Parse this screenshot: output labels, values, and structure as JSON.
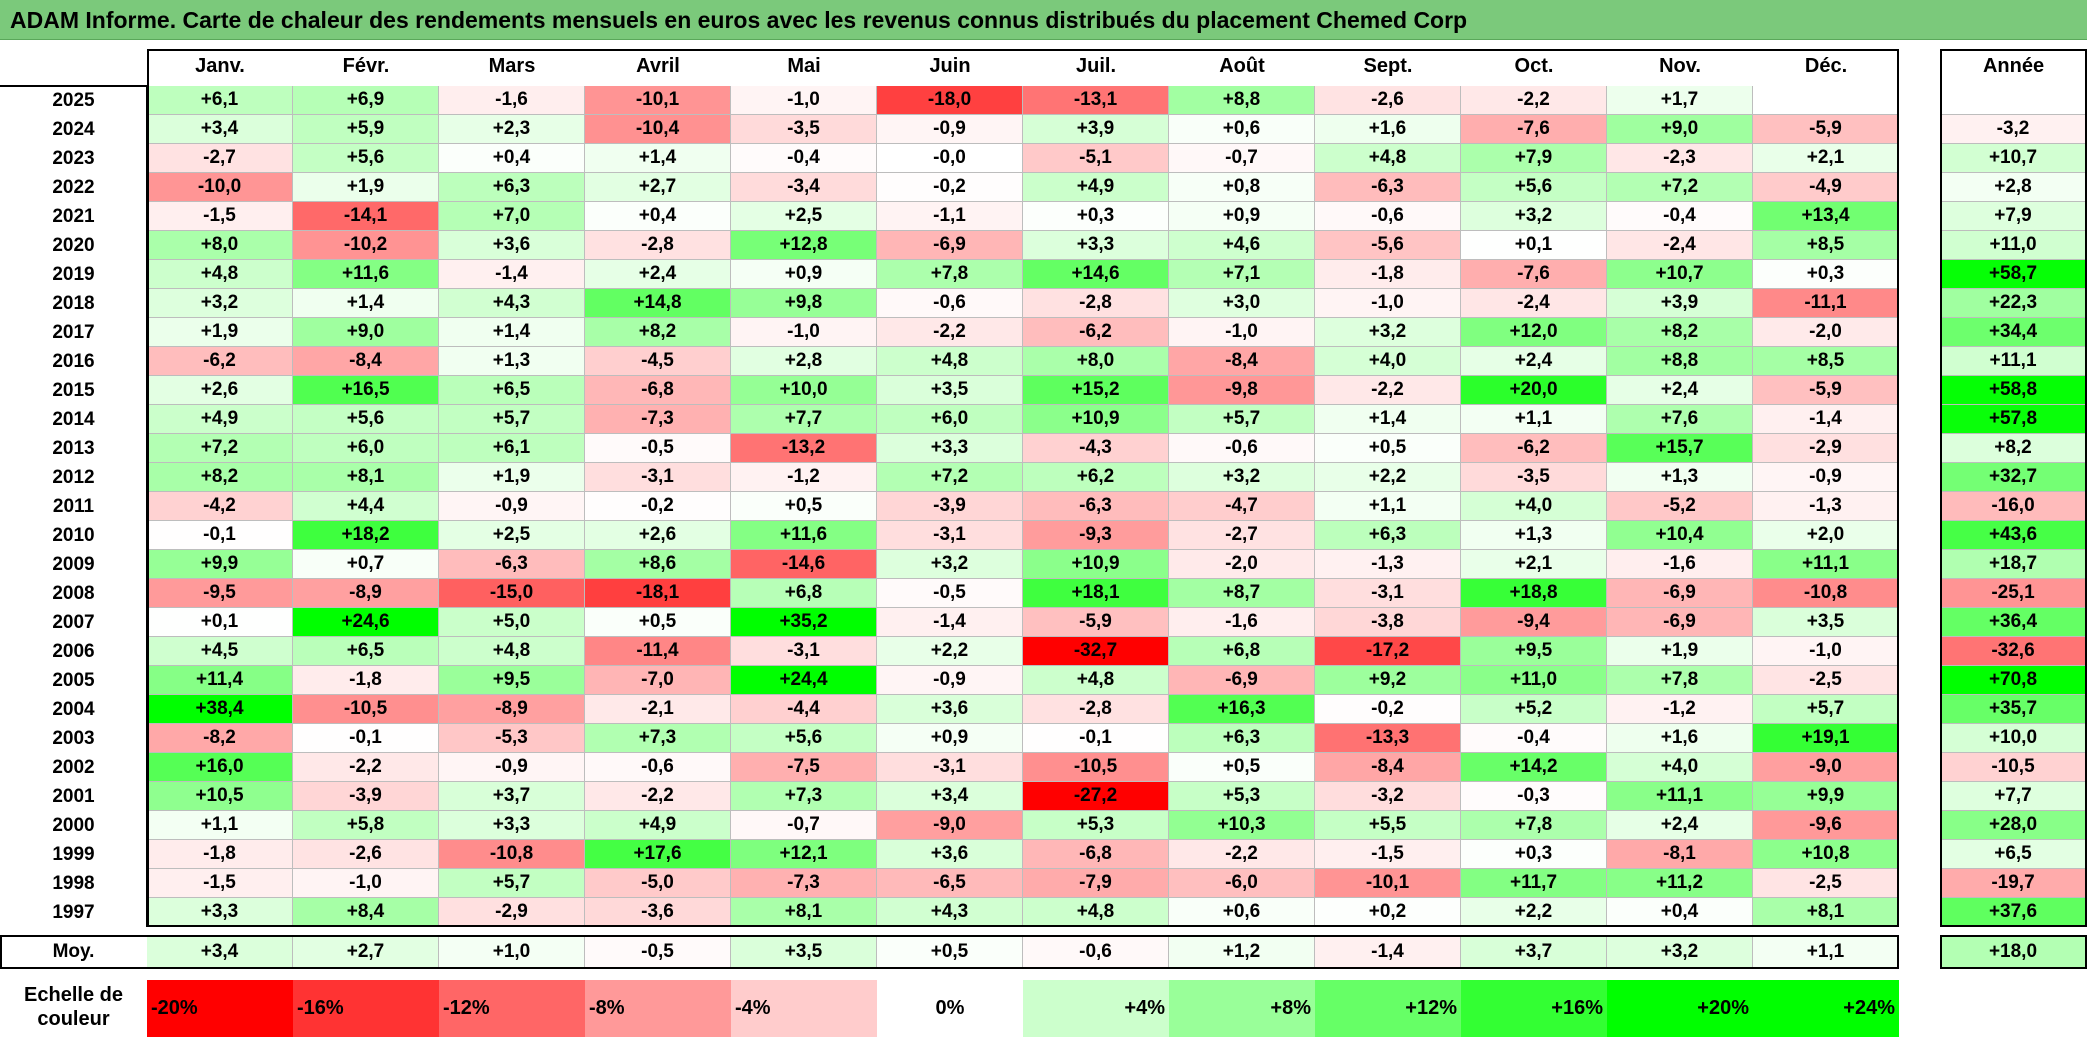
{
  "title": "ADAM Informe. Carte de chaleur des rendements mensuels en euros avec les revenus connus distribués du placement Chemed Corp",
  "colors": {
    "title_bg": "#7bc97b",
    "negative": "#ff0000",
    "positive": "#00ff00",
    "neutral": "#ffffff"
  },
  "chart_data": {
    "type": "heatmap",
    "title": "ADAM Informe. Carte de chaleur des rendements mensuels en euros avec les revenus connus distribués du placement Chemed Corp",
    "columns": [
      "Janv.",
      "Févr.",
      "Mars",
      "Avril",
      "Mai",
      "Juin",
      "Juil.",
      "Août",
      "Sept.",
      "Oct.",
      "Nov.",
      "Déc."
    ],
    "year_column_label": "Année",
    "rows": [
      {
        "year": "2025",
        "values": [
          "+6,1",
          "+6,9",
          "-1,6",
          "-10,1",
          "-1,0",
          "-18,0",
          "-13,1",
          "+8,8",
          "-2,6",
          "-2,2",
          "+1,7",
          ""
        ],
        "annual": ""
      },
      {
        "year": "2024",
        "values": [
          "+3,4",
          "+5,9",
          "+2,3",
          "-10,4",
          "-3,5",
          "-0,9",
          "+3,9",
          "+0,6",
          "+1,6",
          "-7,6",
          "+9,0",
          "-5,9"
        ],
        "annual": "-3,2"
      },
      {
        "year": "2023",
        "values": [
          "-2,7",
          "+5,6",
          "+0,4",
          "+1,4",
          "-0,4",
          "-0,0",
          "-5,1",
          "-0,7",
          "+4,8",
          "+7,9",
          "-2,3",
          "+2,1"
        ],
        "annual": "+10,7"
      },
      {
        "year": "2022",
        "values": [
          "-10,0",
          "+1,9",
          "+6,3",
          "+2,7",
          "-3,4",
          "-0,2",
          "+4,9",
          "+0,8",
          "-6,3",
          "+5,6",
          "+7,2",
          "-4,9"
        ],
        "annual": "+2,8"
      },
      {
        "year": "2021",
        "values": [
          "-1,5",
          "-14,1",
          "+7,0",
          "+0,4",
          "+2,5",
          "-1,1",
          "+0,3",
          "+0,9",
          "-0,6",
          "+3,2",
          "-0,4",
          "+13,4"
        ],
        "annual": "+7,9"
      },
      {
        "year": "2020",
        "values": [
          "+8,0",
          "-10,2",
          "+3,6",
          "-2,8",
          "+12,8",
          "-6,9",
          "+3,3",
          "+4,6",
          "-5,6",
          "+0,1",
          "-2,4",
          "+8,5"
        ],
        "annual": "+11,0"
      },
      {
        "year": "2019",
        "values": [
          "+4,8",
          "+11,6",
          "-1,4",
          "+2,4",
          "+0,9",
          "+7,8",
          "+14,6",
          "+7,1",
          "-1,8",
          "-7,6",
          "+10,7",
          "+0,3"
        ],
        "annual": "+58,7"
      },
      {
        "year": "2018",
        "values": [
          "+3,2",
          "+1,4",
          "+4,3",
          "+14,8",
          "+9,8",
          "-0,6",
          "-2,8",
          "+3,0",
          "-1,0",
          "-2,4",
          "+3,9",
          "-11,1"
        ],
        "annual": "+22,3"
      },
      {
        "year": "2017",
        "values": [
          "+1,9",
          "+9,0",
          "+1,4",
          "+8,2",
          "-1,0",
          "-2,2",
          "-6,2",
          "-1,0",
          "+3,2",
          "+12,0",
          "+8,2",
          "-2,0"
        ],
        "annual": "+34,4"
      },
      {
        "year": "2016",
        "values": [
          "-6,2",
          "-8,4",
          "+1,3",
          "-4,5",
          "+2,8",
          "+4,8",
          "+8,0",
          "-8,4",
          "+4,0",
          "+2,4",
          "+8,8",
          "+8,5"
        ],
        "annual": "+11,1"
      },
      {
        "year": "2015",
        "values": [
          "+2,6",
          "+16,5",
          "+6,5",
          "-6,8",
          "+10,0",
          "+3,5",
          "+15,2",
          "-9,8",
          "-2,2",
          "+20,0",
          "+2,4",
          "-5,9"
        ],
        "annual": "+58,8"
      },
      {
        "year": "2014",
        "values": [
          "+4,9",
          "+5,6",
          "+5,7",
          "-7,3",
          "+7,7",
          "+6,0",
          "+10,9",
          "+5,7",
          "+1,4",
          "+1,1",
          "+7,6",
          "-1,4"
        ],
        "annual": "+57,8"
      },
      {
        "year": "2013",
        "values": [
          "+7,2",
          "+6,0",
          "+6,1",
          "-0,5",
          "-13,2",
          "+3,3",
          "-4,3",
          "-0,6",
          "+0,5",
          "-6,2",
          "+15,7",
          "-2,9"
        ],
        "annual": "+8,2"
      },
      {
        "year": "2012",
        "values": [
          "+8,2",
          "+8,1",
          "+1,9",
          "-3,1",
          "-1,2",
          "+7,2",
          "+6,2",
          "+3,2",
          "+2,2",
          "-3,5",
          "+1,3",
          "-0,9"
        ],
        "annual": "+32,7"
      },
      {
        "year": "2011",
        "values": [
          "-4,2",
          "+4,4",
          "-0,9",
          "-0,2",
          "+0,5",
          "-3,9",
          "-6,3",
          "-4,7",
          "+1,1",
          "+4,0",
          "-5,2",
          "-1,3"
        ],
        "annual": "-16,0"
      },
      {
        "year": "2010",
        "values": [
          "-0,1",
          "+18,2",
          "+2,5",
          "+2,6",
          "+11,6",
          "-3,1",
          "-9,3",
          "-2,7",
          "+6,3",
          "+1,3",
          "+10,4",
          "+2,0"
        ],
        "annual": "+43,6"
      },
      {
        "year": "2009",
        "values": [
          "+9,9",
          "+0,7",
          "-6,3",
          "+8,6",
          "-14,6",
          "+3,2",
          "+10,9",
          "-2,0",
          "-1,3",
          "+2,1",
          "-1,6",
          "+11,1"
        ],
        "annual": "+18,7"
      },
      {
        "year": "2008",
        "values": [
          "-9,5",
          "-8,9",
          "-15,0",
          "-18,1",
          "+6,8",
          "-0,5",
          "+18,1",
          "+8,7",
          "-3,1",
          "+18,8",
          "-6,9",
          "-10,8"
        ],
        "annual": "-25,1"
      },
      {
        "year": "2007",
        "values": [
          "+0,1",
          "+24,6",
          "+5,0",
          "+0,5",
          "+35,2",
          "-1,4",
          "-5,9",
          "-1,6",
          "-3,8",
          "-9,4",
          "-6,9",
          "+3,5"
        ],
        "annual": "+36,4"
      },
      {
        "year": "2006",
        "values": [
          "+4,5",
          "+6,5",
          "+4,8",
          "-11,4",
          "-3,1",
          "+2,2",
          "-32,7",
          "+6,8",
          "-17,2",
          "+9,5",
          "+1,9",
          "-1,0"
        ],
        "annual": "-32,6"
      },
      {
        "year": "2005",
        "values": [
          "+11,4",
          "-1,8",
          "+9,5",
          "-7,0",
          "+24,4",
          "-0,9",
          "+4,8",
          "-6,9",
          "+9,2",
          "+11,0",
          "+7,8",
          "-2,5"
        ],
        "annual": "+70,8"
      },
      {
        "year": "2004",
        "values": [
          "+38,4",
          "-10,5",
          "-8,9",
          "-2,1",
          "-4,4",
          "+3,6",
          "-2,8",
          "+16,3",
          "-0,2",
          "+5,2",
          "-1,2",
          "+5,7"
        ],
        "annual": "+35,7"
      },
      {
        "year": "2003",
        "values": [
          "-8,2",
          "-0,1",
          "-5,3",
          "+7,3",
          "+5,6",
          "+0,9",
          "-0,1",
          "+6,3",
          "-13,3",
          "-0,4",
          "+1,6",
          "+19,1"
        ],
        "annual": "+10,0"
      },
      {
        "year": "2002",
        "values": [
          "+16,0",
          "-2,2",
          "-0,9",
          "-0,6",
          "-7,5",
          "-3,1",
          "-10,5",
          "+0,5",
          "-8,4",
          "+14,2",
          "+4,0",
          "-9,0"
        ],
        "annual": "-10,5"
      },
      {
        "year": "2001",
        "values": [
          "+10,5",
          "-3,9",
          "+3,7",
          "-2,2",
          "+7,3",
          "+3,4",
          "-27,2",
          "+5,3",
          "-3,2",
          "-0,3",
          "+11,1",
          "+9,9"
        ],
        "annual": "+7,7"
      },
      {
        "year": "2000",
        "values": [
          "+1,1",
          "+5,8",
          "+3,3",
          "+4,9",
          "-0,7",
          "-9,0",
          "+5,3",
          "+10,3",
          "+5,5",
          "+7,8",
          "+2,4",
          "-9,6"
        ],
        "annual": "+28,0"
      },
      {
        "year": "1999",
        "values": [
          "-1,8",
          "-2,6",
          "-10,8",
          "+17,6",
          "+12,1",
          "+3,6",
          "-6,8",
          "-2,2",
          "-1,5",
          "+0,3",
          "-8,1",
          "+10,8"
        ],
        "annual": "+6,5"
      },
      {
        "year": "1998",
        "values": [
          "-1,5",
          "-1,0",
          "+5,7",
          "-5,0",
          "-7,3",
          "-6,5",
          "-7,9",
          "-6,0",
          "-10,1",
          "+11,7",
          "+11,2",
          "-2,5"
        ],
        "annual": "-19,7"
      },
      {
        "year": "1997",
        "values": [
          "+3,3",
          "+8,4",
          "-2,9",
          "-3,6",
          "+8,1",
          "+4,3",
          "+4,8",
          "+0,6",
          "+0,2",
          "+2,2",
          "+0,4",
          "+8,1"
        ],
        "annual": "+37,6"
      }
    ],
    "average": {
      "label": "Moy.",
      "values": [
        "+3,4",
        "+2,7",
        "+1,0",
        "-0,5",
        "+3,5",
        "+0,5",
        "-0,6",
        "+1,2",
        "-1,4",
        "+3,7",
        "+3,2",
        "+1,1"
      ],
      "annual": "+18,0"
    },
    "scale": {
      "label": "Echelle de couleur",
      "steps": [
        {
          "text": "-20%",
          "value": -20
        },
        {
          "text": "-16%",
          "value": -16
        },
        {
          "text": "-12%",
          "value": -12
        },
        {
          "text": "-8%",
          "value": -8
        },
        {
          "text": "-4%",
          "value": -4
        },
        {
          "text": "0%",
          "value": 0
        },
        {
          "text": "+4%",
          "value": 4
        },
        {
          "text": "+8%",
          "value": 8
        },
        {
          "text": "+12%",
          "value": 12
        },
        {
          "text": "+16%",
          "value": 16
        },
        {
          "text": "+20%",
          "value": 20
        },
        {
          "text": "+24%",
          "value": 24
        }
      ]
    }
  }
}
